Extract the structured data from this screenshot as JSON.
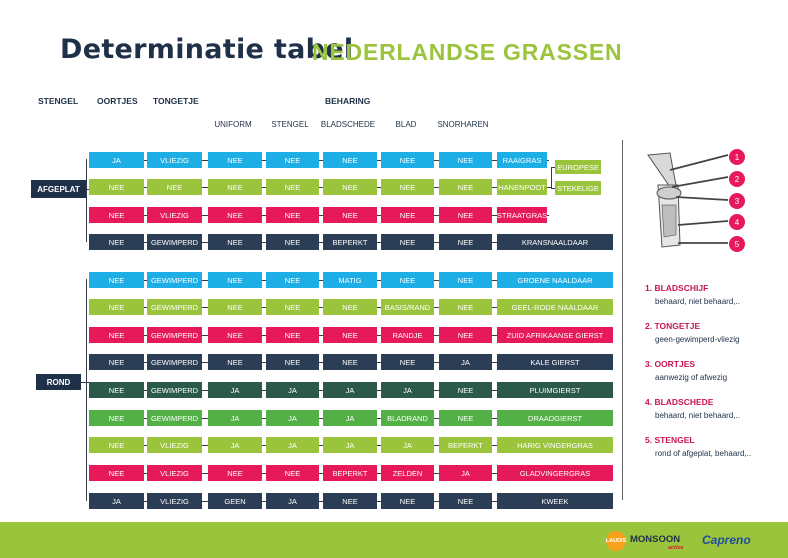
{
  "title": {
    "script": "Determinatie tabel",
    "caps": "NEDERLANDSE GRASSEN"
  },
  "headers": {
    "stengel": "STENGEL",
    "oortjes": "OORTJES",
    "tongetje": "TONGETJE",
    "beharing": "BEHARING"
  },
  "subheaders": [
    "UNIFORM",
    "STENGEL",
    "BLADSCHEDE",
    "BLAD",
    "SNORHAREN"
  ],
  "groups": {
    "afgeplat": "AFGEPLAT",
    "rond": "ROND"
  },
  "colors": {
    "blue": "#1eaee6",
    "lime": "#9bc43d",
    "pink": "#e6195a",
    "navy": "#2c3e55",
    "darkgreen": "#2b5a4a",
    "green": "#52b046",
    "dark": "#1f3148"
  },
  "rows": [
    {
      "color": "blue",
      "cells": [
        "JA",
        "VLIEZIG",
        "NEE",
        "NEE",
        "NEE",
        "NEE",
        "NEE"
      ],
      "result": "RAAIGRAS"
    },
    {
      "color": "lime",
      "cells": [
        "NEE",
        "NEE",
        "NEE",
        "NEE",
        "NEE",
        "NEE",
        "NEE"
      ],
      "result": "HANENPOOT"
    },
    {
      "color": "pink",
      "cells": [
        "NEE",
        "VLIEZIG",
        "NEE",
        "NEE",
        "NEE",
        "NEE",
        "NEE"
      ],
      "result": "STRAATGRAS"
    },
    {
      "color": "navy",
      "cells": [
        "NEE",
        "GEWIMPERD",
        "NEE",
        "NEE",
        "BEPERKT",
        "NEE",
        "NEE"
      ],
      "result": "KRANSNAALDAAR"
    },
    {
      "color": "blue",
      "cells": [
        "NEE",
        "GEWIMPERD",
        "NEE",
        "NEE",
        "MATIG",
        "NEE",
        "NEE"
      ],
      "result": "GROENE NAALDAAR"
    },
    {
      "color": "lime",
      "cells": [
        "NEE",
        "GEWIMPERD",
        "NEE",
        "NEE",
        "NEE",
        "BASIS/RAND",
        "NEE"
      ],
      "result": "GEEL-RODE NAALDAAR"
    },
    {
      "color": "pink",
      "cells": [
        "NEE",
        "GEWIMPERD",
        "NEE",
        "NEE",
        "NEE",
        "RANDJE",
        "NEE"
      ],
      "result": "ZUID AFRIKAANSE GIERST"
    },
    {
      "color": "navy",
      "cells": [
        "NEE",
        "GEWIMPERD",
        "NEE",
        "NEE",
        "NEE",
        "NEE",
        "JA"
      ],
      "result": "KALE GIERST"
    },
    {
      "color": "darkgreen",
      "cells": [
        "NEE",
        "GEWIMPERD",
        "JA",
        "JA",
        "JA",
        "JA",
        "NEE"
      ],
      "result": "PLUIMGIERST"
    },
    {
      "color": "green",
      "cells": [
        "NEE",
        "GEWIMPERD",
        "JA",
        "JA",
        "JA",
        "BLADRAND",
        "NEE"
      ],
      "result": "DRAADGIERST"
    },
    {
      "color": "lime",
      "cells": [
        "NEE",
        "VLIEZIG",
        "JA",
        "JA",
        "JA",
        "JA",
        "BEPERKT"
      ],
      "result": "HARIG VINGERGRAS"
    },
    {
      "color": "pink",
      "cells": [
        "NEE",
        "VLIEZIG",
        "NEE",
        "NEE",
        "BEPERKT",
        "ZELDEN",
        "JA"
      ],
      "result": "GLADVINGERGRAS"
    },
    {
      "color": "navy",
      "cells": [
        "JA",
        "VLIEZIG",
        "GEEN",
        "JA",
        "NEE",
        "NEE",
        "NEE"
      ],
      "result": "KWEEK"
    }
  ],
  "hanenpoot_variants": [
    "EUROPESE",
    "STEKELIGE"
  ],
  "legend": [
    {
      "num": "1",
      "title": "1. BLADSCHIJF",
      "desc": "behaard, niet behaard,.."
    },
    {
      "num": "2",
      "title": "2. TONGETJE",
      "desc": "geen-gewimperd-vliezig"
    },
    {
      "num": "3",
      "title": "3. OORTJES",
      "desc": "aanwezig of afwezig"
    },
    {
      "num": "4",
      "title": "4. BLADSCHEDE",
      "desc": "behaard, niet behaard,.."
    },
    {
      "num": "5",
      "title": "5. STENGEL",
      "desc": "rond of afgeplat, behaard,.."
    }
  ],
  "logos": [
    "LAUDIS",
    "MONSOON",
    "active",
    "Capreno"
  ]
}
